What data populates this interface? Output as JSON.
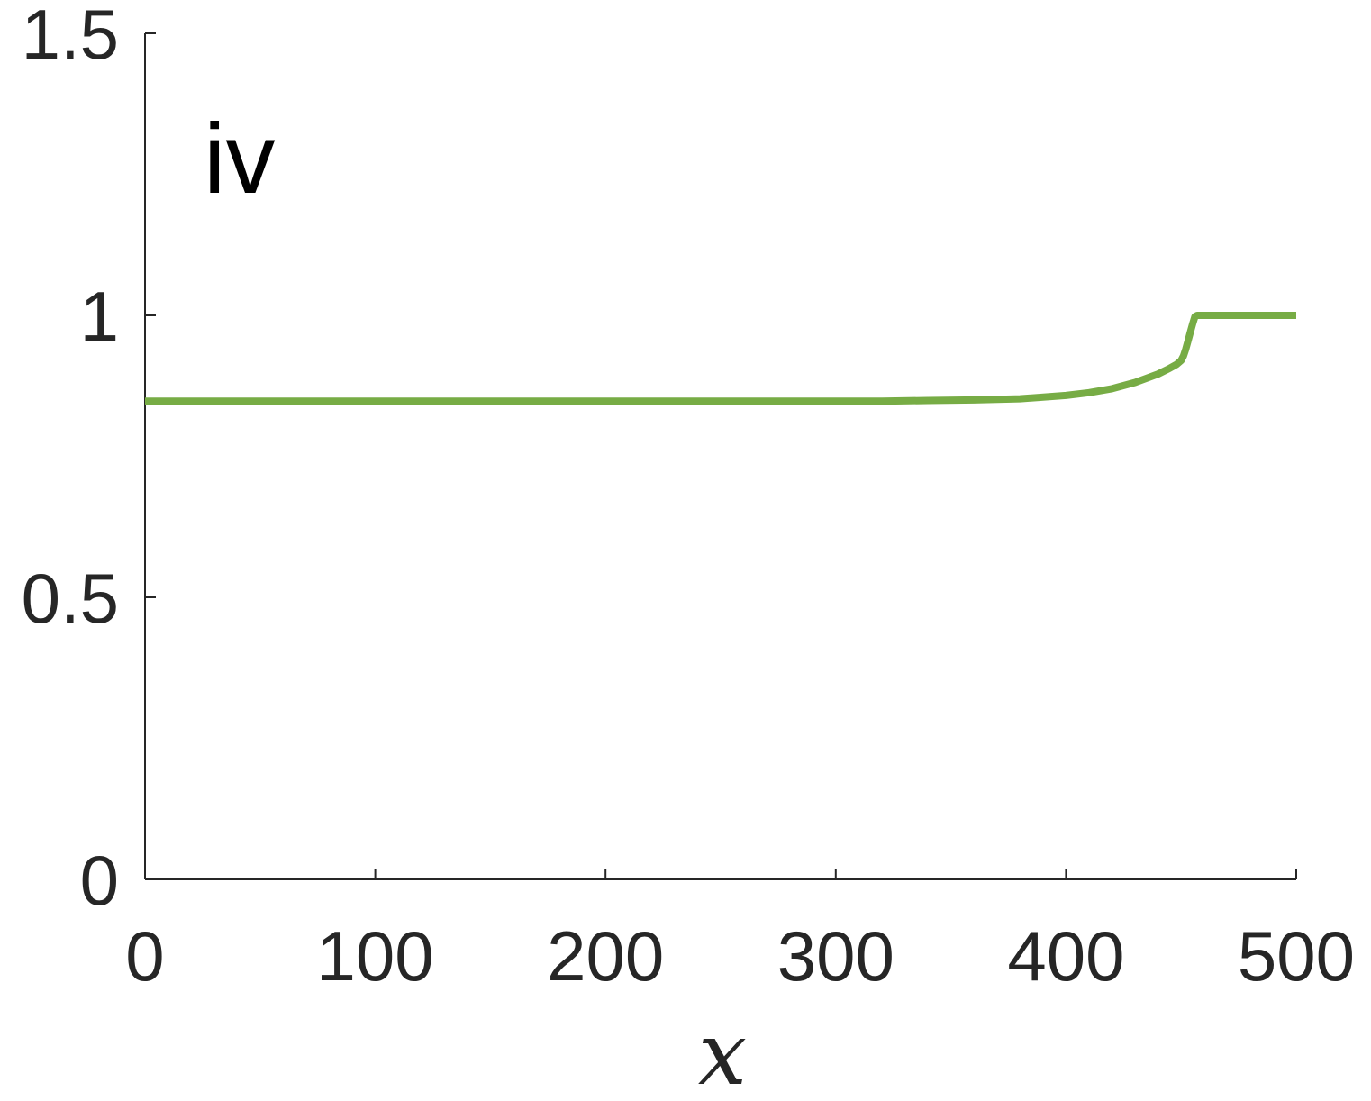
{
  "chart_data": {
    "type": "line",
    "title": "",
    "panel_label": "iv",
    "xlabel": "x",
    "ylabel": "",
    "xlim": [
      0,
      500
    ],
    "ylim": [
      0,
      1.5
    ],
    "xticks": [
      0,
      100,
      200,
      300,
      400,
      500
    ],
    "yticks": [
      0,
      0.5,
      1,
      1.5
    ],
    "xtick_labels": [
      "0",
      "100",
      "200",
      "300",
      "400",
      "500"
    ],
    "ytick_labels": [
      "0",
      "0.5",
      "1",
      "1.5"
    ],
    "grid": false,
    "box": false,
    "series": [
      {
        "color": "#77ac45",
        "x": [
          0,
          100,
          200,
          300,
          320,
          340,
          360,
          380,
          400,
          410,
          420,
          430,
          440,
          445,
          448,
          450,
          451,
          452,
          453,
          454,
          455,
          456,
          457,
          458,
          460,
          470,
          480,
          490,
          500
        ],
        "y": [
          0.848,
          0.848,
          0.848,
          0.848,
          0.848,
          0.849,
          0.85,
          0.852,
          0.858,
          0.863,
          0.87,
          0.881,
          0.896,
          0.906,
          0.913,
          0.92,
          0.928,
          0.94,
          0.955,
          0.97,
          0.985,
          0.998,
          1.0,
          1.0,
          1.0,
          1.0,
          1.0,
          1.0,
          1.0
        ]
      }
    ]
  }
}
